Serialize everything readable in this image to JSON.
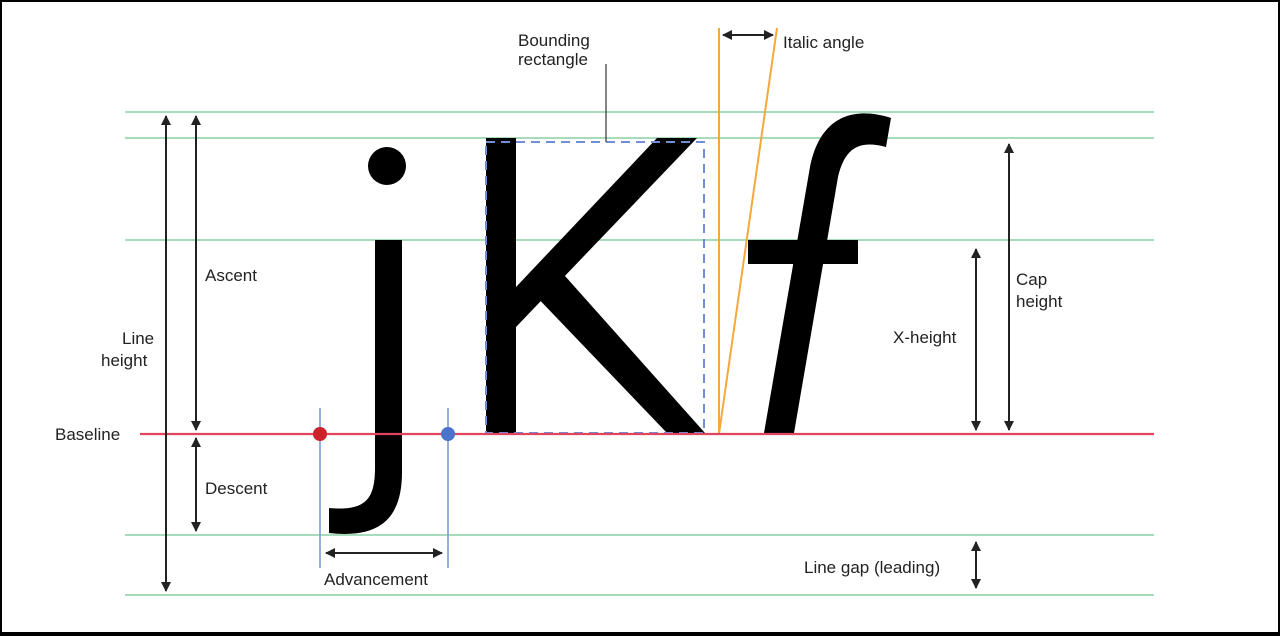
{
  "diagram": {
    "glyphs": [
      "j",
      "K",
      "f"
    ],
    "labels": {
      "bounding_line1": "Bounding",
      "bounding_line2": "rectangle",
      "italic_angle": "Italic angle",
      "ascent": "Ascent",
      "line_height_line1": "Line",
      "line_height_line2": "height",
      "baseline": "Baseline",
      "descent": "Descent",
      "advancement": "Advancement",
      "x_height": "X-height",
      "cap_height_line1": "Cap",
      "cap_height_line2": "height",
      "line_gap": "Line gap (leading)"
    },
    "colors": {
      "guide_line": "#8ccfa3",
      "baseline": "#e0455e",
      "bounding_box": "#6f8fd8",
      "italic_lines": "#f2a93b",
      "advance_lines": "#7f9ad9",
      "advance_start_dot": "#cc2229",
      "advance_end_dot": "#4a74cc",
      "arrow": "#222222",
      "glyph": "#000000"
    }
  }
}
